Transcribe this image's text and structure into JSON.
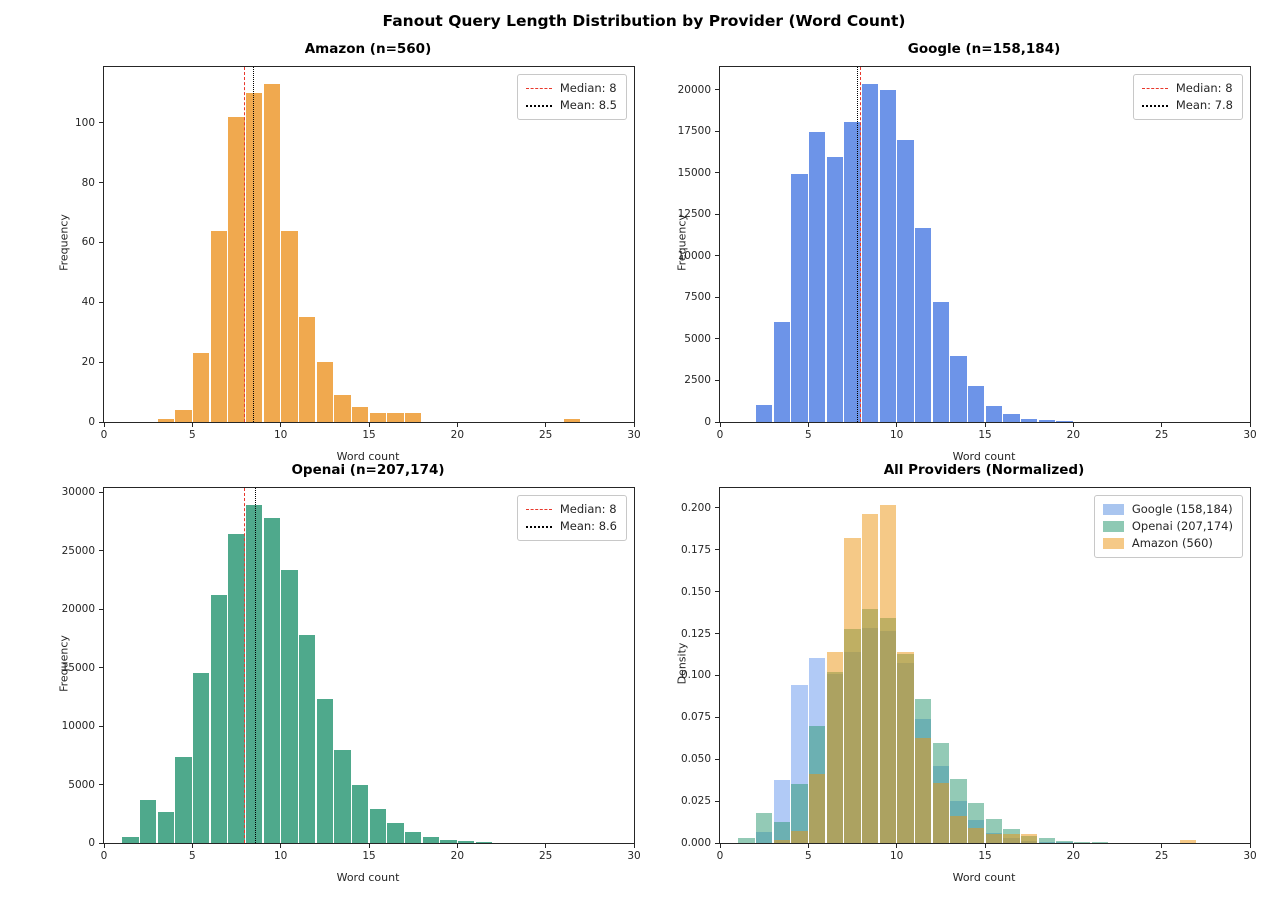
{
  "figure_title": "Fanout Query Length Distribution by Provider (Word Count)",
  "colors": {
    "amazon_solid": "#F0A94F",
    "google_solid": "#6D94E8",
    "openai_solid": "#4FA98C",
    "amazon_overlay": "rgba(235,148,16,0.5)",
    "google_overlay": "rgba(100,149,237,0.5)",
    "openai_overlay": "rgba(40,150,110,0.5)",
    "median_red": "#E8382C",
    "mean_black": "#000000",
    "axis": "#262626"
  },
  "chart_data": [
    {
      "type": "bar",
      "title": "Amazon (n=560)",
      "xlabel": "Word count",
      "ylabel": "Frequency",
      "xlim": [
        0,
        30
      ],
      "ymax": 118.65,
      "bar_color": "#F0A94F",
      "xticks": [
        {
          "v": 0,
          "label": "0"
        },
        {
          "v": 5,
          "label": "5"
        },
        {
          "v": 10,
          "label": "10"
        },
        {
          "v": 15,
          "label": "15"
        },
        {
          "v": 20,
          "label": "20"
        },
        {
          "v": 25,
          "label": "25"
        },
        {
          "v": 30,
          "label": "30"
        }
      ],
      "yticks": [
        {
          "v": 0,
          "label": "0"
        },
        {
          "v": 20,
          "label": "20"
        },
        {
          "v": 40,
          "label": "40"
        },
        {
          "v": 60,
          "label": "60"
        },
        {
          "v": 80,
          "label": "80"
        },
        {
          "v": 100,
          "label": "100"
        }
      ],
      "bins": [
        [
          3,
          1
        ],
        [
          4,
          4
        ],
        [
          5,
          23
        ],
        [
          6,
          64
        ],
        [
          7,
          102
        ],
        [
          8,
          110
        ],
        [
          9,
          113
        ],
        [
          10,
          64
        ],
        [
          11,
          35
        ],
        [
          12,
          20
        ],
        [
          13,
          9
        ],
        [
          14,
          5
        ],
        [
          15,
          3
        ],
        [
          16,
          3
        ],
        [
          17,
          3
        ],
        [
          26,
          1
        ]
      ],
      "lines": [
        {
          "x": 8,
          "style": "dashed",
          "color": "#E8382C",
          "label": "Median: 8"
        },
        {
          "x": 8.5,
          "style": "dotted",
          "color": "#000000",
          "label": "Mean: 8.5"
        }
      ],
      "legend": [
        {
          "sample": "dashed",
          "color": "#E8382C",
          "label": "Median: 8"
        },
        {
          "sample": "dotted",
          "color": "#000000",
          "label": "Mean: 8.5"
        }
      ]
    },
    {
      "type": "bar",
      "title": "Google (n=158,184)",
      "xlabel": "Word count",
      "ylabel": "Frequency",
      "xlim": [
        0,
        30
      ],
      "ymax": 21368,
      "bar_color": "#6D94E8",
      "xticks": [
        {
          "v": 0,
          "label": "0"
        },
        {
          "v": 5,
          "label": "5"
        },
        {
          "v": 10,
          "label": "10"
        },
        {
          "v": 15,
          "label": "15"
        },
        {
          "v": 20,
          "label": "20"
        },
        {
          "v": 25,
          "label": "25"
        },
        {
          "v": 30,
          "label": "30"
        }
      ],
      "yticks": [
        {
          "v": 0,
          "label": "0"
        },
        {
          "v": 2500,
          "label": "2500"
        },
        {
          "v": 5000,
          "label": "5000"
        },
        {
          "v": 7500,
          "label": "7500"
        },
        {
          "v": 10000,
          "label": "10000"
        },
        {
          "v": 12500,
          "label": "12500"
        },
        {
          "v": 15000,
          "label": "15000"
        },
        {
          "v": 17500,
          "label": "17500"
        },
        {
          "v": 20000,
          "label": "20000"
        }
      ],
      "bins": [
        [
          2,
          1050
        ],
        [
          3,
          6000
        ],
        [
          4,
          14900
        ],
        [
          5,
          17450
        ],
        [
          6,
          15950
        ],
        [
          7,
          18050
        ],
        [
          8,
          20350
        ],
        [
          9,
          20000
        ],
        [
          10,
          16950
        ],
        [
          11,
          11700
        ],
        [
          12,
          7250
        ],
        [
          13,
          4000
        ],
        [
          14,
          2150
        ],
        [
          15,
          950
        ],
        [
          16,
          500
        ],
        [
          17,
          175
        ],
        [
          18,
          100
        ],
        [
          19,
          50
        ]
      ],
      "lines": [
        {
          "x": 8,
          "style": "dashed",
          "color": "#E8382C",
          "label": "Median: 8"
        },
        {
          "x": 7.8,
          "style": "dotted",
          "color": "#000000",
          "label": "Mean: 7.8"
        }
      ],
      "legend": [
        {
          "sample": "dashed",
          "color": "#E8382C",
          "label": "Median: 8"
        },
        {
          "sample": "dotted",
          "color": "#000000",
          "label": "Mean: 7.8"
        }
      ]
    },
    {
      "type": "bar",
      "title": "Openai (n=207,174)",
      "xlabel": "Word count",
      "ylabel": "Frequency",
      "xlim": [
        0,
        30
      ],
      "ymax": 30345,
      "bar_color": "#4FA98C",
      "xticks": [
        {
          "v": 0,
          "label": "0"
        },
        {
          "v": 5,
          "label": "5"
        },
        {
          "v": 10,
          "label": "10"
        },
        {
          "v": 15,
          "label": "15"
        },
        {
          "v": 20,
          "label": "20"
        },
        {
          "v": 25,
          "label": "25"
        },
        {
          "v": 30,
          "label": "30"
        }
      ],
      "yticks": [
        {
          "v": 0,
          "label": "0"
        },
        {
          "v": 5000,
          "label": "5000"
        },
        {
          "v": 10000,
          "label": "10000"
        },
        {
          "v": 15000,
          "label": "15000"
        },
        {
          "v": 20000,
          "label": "20000"
        },
        {
          "v": 25000,
          "label": "25000"
        },
        {
          "v": 30000,
          "label": "30000"
        }
      ],
      "bins": [
        [
          1,
          550
        ],
        [
          2,
          3700
        ],
        [
          3,
          2650
        ],
        [
          4,
          7350
        ],
        [
          5,
          14500
        ],
        [
          6,
          21200
        ],
        [
          7,
          26450
        ],
        [
          8,
          28900
        ],
        [
          9,
          27800
        ],
        [
          10,
          23350
        ],
        [
          11,
          17800
        ],
        [
          12,
          12350
        ],
        [
          13,
          7950
        ],
        [
          14,
          4950
        ],
        [
          15,
          2950
        ],
        [
          16,
          1700
        ],
        [
          17,
          900
        ],
        [
          18,
          550
        ],
        [
          19,
          300
        ],
        [
          20,
          150
        ],
        [
          21,
          80
        ]
      ],
      "lines": [
        {
          "x": 8,
          "style": "dashed",
          "color": "#E8382C",
          "label": "Median: 8"
        },
        {
          "x": 8.6,
          "style": "dotted",
          "color": "#000000",
          "label": "Mean: 8.6"
        }
      ],
      "legend": [
        {
          "sample": "dashed",
          "color": "#E8382C",
          "label": "Median: 8"
        },
        {
          "sample": "dotted",
          "color": "#000000",
          "label": "Mean: 8.6"
        }
      ]
    },
    {
      "type": "histogram-overlay",
      "title": "All Providers (Normalized)",
      "xlabel": "Word count",
      "ylabel": "Density",
      "xlim": [
        0,
        30
      ],
      "ymax": 0.2119,
      "xticks": [
        {
          "v": 0,
          "label": "0"
        },
        {
          "v": 5,
          "label": "5"
        },
        {
          "v": 10,
          "label": "10"
        },
        {
          "v": 15,
          "label": "15"
        },
        {
          "v": 20,
          "label": "20"
        },
        {
          "v": 25,
          "label": "25"
        },
        {
          "v": 30,
          "label": "30"
        }
      ],
      "yticks": [
        {
          "v": 0,
          "label": "0.000"
        },
        {
          "v": 0.025,
          "label": "0.025"
        },
        {
          "v": 0.05,
          "label": "0.050"
        },
        {
          "v": 0.075,
          "label": "0.075"
        },
        {
          "v": 0.1,
          "label": "0.100"
        },
        {
          "v": 0.125,
          "label": "0.125"
        },
        {
          "v": 0.15,
          "label": "0.150"
        },
        {
          "v": 0.175,
          "label": "0.175"
        },
        {
          "v": 0.2,
          "label": "0.200"
        }
      ],
      "series": [
        {
          "name": "Google (158,184)",
          "color": "rgba(100,149,237,0.5)",
          "bins": [
            [
              2,
              0.0066
            ],
            [
              3,
              0.0379
            ],
            [
              4,
              0.0942
            ],
            [
              5,
              0.1103
            ],
            [
              6,
              0.1008
            ],
            [
              7,
              0.1141
            ],
            [
              8,
              0.1286
            ],
            [
              9,
              0.1264
            ],
            [
              10,
              0.1072
            ],
            [
              11,
              0.074
            ],
            [
              12,
              0.0458
            ],
            [
              13,
              0.0253
            ],
            [
              14,
              0.0136
            ],
            [
              15,
              0.006
            ],
            [
              16,
              0.0032
            ],
            [
              17,
              0.0011
            ],
            [
              18,
              0.0006
            ],
            [
              19,
              0.0003
            ]
          ]
        },
        {
          "name": "Openai (207,174)",
          "color": "rgba(40,150,110,0.5)",
          "bins": [
            [
              1,
              0.0027
            ],
            [
              2,
              0.0179
            ],
            [
              3,
              0.0128
            ],
            [
              4,
              0.0355
            ],
            [
              5,
              0.07
            ],
            [
              6,
              0.1023
            ],
            [
              7,
              0.1277
            ],
            [
              8,
              0.1395
            ],
            [
              9,
              0.1342
            ],
            [
              10,
              0.1127
            ],
            [
              11,
              0.0859
            ],
            [
              12,
              0.0596
            ],
            [
              13,
              0.0384
            ],
            [
              14,
              0.0239
            ],
            [
              15,
              0.0142
            ],
            [
              16,
              0.0082
            ],
            [
              17,
              0.0043
            ],
            [
              18,
              0.0027
            ],
            [
              19,
              0.0014
            ],
            [
              20,
              0.0007
            ],
            [
              21,
              0.0004
            ]
          ]
        },
        {
          "name": "Amazon (560)",
          "color": "rgba(235,148,16,0.5)",
          "bins": [
            [
              3,
              0.0018
            ],
            [
              4,
              0.0071
            ],
            [
              5,
              0.0411
            ],
            [
              6,
              0.1143
            ],
            [
              7,
              0.1821
            ],
            [
              8,
              0.1964
            ],
            [
              9,
              0.2018
            ],
            [
              10,
              0.1143
            ],
            [
              11,
              0.0625
            ],
            [
              12,
              0.0357
            ],
            [
              13,
              0.0161
            ],
            [
              14,
              0.0089
            ],
            [
              15,
              0.0054
            ],
            [
              16,
              0.0054
            ],
            [
              17,
              0.0054
            ],
            [
              26,
              0.0018
            ]
          ]
        }
      ],
      "legend": [
        {
          "sample": "patch",
          "color": "#A9C5EF",
          "label": "Google (158,184)"
        },
        {
          "sample": "patch",
          "color": "#8EC9B4",
          "label": "Openai (207,174)"
        },
        {
          "sample": "patch",
          "color": "#F5C987",
          "label": "Amazon (560)"
        }
      ]
    }
  ]
}
